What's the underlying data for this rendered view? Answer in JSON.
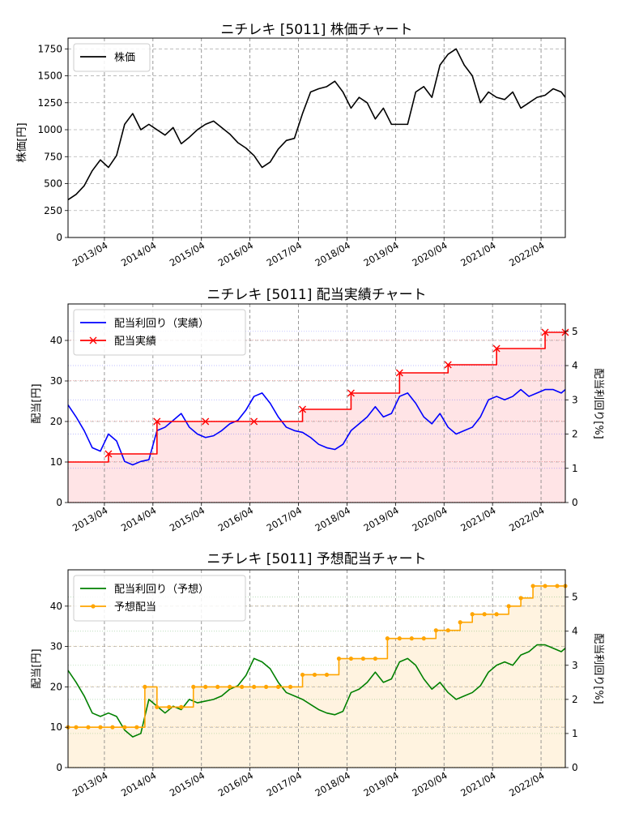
{
  "chart_data": [
    {
      "type": "line",
      "title": "ニチレキ [5011]  株価チャート",
      "ylabel": "株価[円]",
      "ylim": [
        0,
        1850
      ],
      "yticks": [
        0,
        250,
        500,
        750,
        1000,
        1250,
        1500,
        1750
      ],
      "x_range": [
        "2012-07",
        "2022-10"
      ],
      "xticks": [
        "2013/04",
        "2014/04",
        "2015/04",
        "2016/04",
        "2017/04",
        "2018/04",
        "2019/04",
        "2020/04",
        "2021/04",
        "2022/04"
      ],
      "grid": true,
      "legend_position": "top-left",
      "series": [
        {
          "name": "株価",
          "color": "#000000",
          "x": [
            "2012-07",
            "2012-09",
            "2012-11",
            "2013-01",
            "2013-03",
            "2013-05",
            "2013-07",
            "2013-09",
            "2013-11",
            "2014-01",
            "2014-03",
            "2014-05",
            "2014-07",
            "2014-09",
            "2014-11",
            "2015-01",
            "2015-03",
            "2015-05",
            "2015-07",
            "2015-09",
            "2015-11",
            "2016-01",
            "2016-03",
            "2016-05",
            "2016-07",
            "2016-09",
            "2016-11",
            "2017-01",
            "2017-03",
            "2017-05",
            "2017-07",
            "2017-09",
            "2017-11",
            "2018-01",
            "2018-03",
            "2018-05",
            "2018-07",
            "2018-09",
            "2018-11",
            "2019-01",
            "2019-03",
            "2019-05",
            "2019-07",
            "2019-09",
            "2019-11",
            "2020-01",
            "2020-03",
            "2020-05",
            "2020-07",
            "2020-09",
            "2020-11",
            "2021-01",
            "2021-03",
            "2021-05",
            "2021-07",
            "2021-09",
            "2021-11",
            "2022-01",
            "2022-03",
            "2022-05",
            "2022-07",
            "2022-09",
            "2022-10"
          ],
          "values": [
            350,
            400,
            480,
            620,
            720,
            650,
            760,
            1050,
            1150,
            1000,
            1050,
            1000,
            950,
            1020,
            870,
            930,
            1000,
            1050,
            1080,
            1020,
            960,
            880,
            830,
            760,
            650,
            700,
            820,
            900,
            920,
            1150,
            1350,
            1380,
            1400,
            1450,
            1350,
            1200,
            1300,
            1250,
            1100,
            1200,
            1050,
            1050,
            1050,
            1350,
            1400,
            1300,
            1600,
            1700,
            1750,
            1600,
            1500,
            1250,
            1350,
            1300,
            1280,
            1350,
            1200,
            1250,
            1300,
            1320,
            1380,
            1350,
            1300
          ]
        }
      ]
    },
    {
      "type": "line",
      "title": "ニチレキ [5011]  配当実績チャート",
      "ylabel": "配当[円]",
      "ylabel_right": "配当利回り[%]",
      "ylim": [
        0,
        49
      ],
      "yticks": [
        0,
        10,
        20,
        30,
        40
      ],
      "ylim_right": [
        0,
        5.8
      ],
      "yticks_right": [
        0,
        1,
        2,
        3,
        4,
        5
      ],
      "x_range": [
        "2012-07",
        "2022-10"
      ],
      "xticks": [
        "2013/04",
        "2014/04",
        "2015/04",
        "2016/04",
        "2017/04",
        "2018/04",
        "2019/04",
        "2020/04",
        "2021/04",
        "2022/04"
      ],
      "grid": true,
      "legend_position": "top-left",
      "series": [
        {
          "name": "配当利回り（実績）",
          "axis": "right",
          "color": "#0000ff",
          "x": [
            "2012-07",
            "2012-09",
            "2012-11",
            "2013-01",
            "2013-03",
            "2013-05",
            "2013-07",
            "2013-09",
            "2013-11",
            "2014-01",
            "2014-03",
            "2014-05",
            "2014-07",
            "2014-09",
            "2014-11",
            "2015-01",
            "2015-03",
            "2015-05",
            "2015-07",
            "2015-09",
            "2015-11",
            "2016-01",
            "2016-03",
            "2016-05",
            "2016-07",
            "2016-09",
            "2016-11",
            "2017-01",
            "2017-03",
            "2017-05",
            "2017-07",
            "2017-09",
            "2017-11",
            "2018-01",
            "2018-03",
            "2018-05",
            "2018-07",
            "2018-09",
            "2018-11",
            "2019-01",
            "2019-03",
            "2019-05",
            "2019-07",
            "2019-09",
            "2019-11",
            "2020-01",
            "2020-03",
            "2020-05",
            "2020-07",
            "2020-09",
            "2020-11",
            "2021-01",
            "2021-03",
            "2021-05",
            "2021-07",
            "2021-09",
            "2021-11",
            "2022-01",
            "2022-03",
            "2022-05",
            "2022-07",
            "2022-09",
            "2022-10"
          ],
          "values": [
            2.85,
            2.5,
            2.1,
            1.6,
            1.5,
            2.0,
            1.8,
            1.2,
            1.1,
            1.2,
            1.25,
            2.1,
            2.2,
            2.4,
            2.6,
            2.2,
            2.0,
            1.9,
            1.95,
            2.1,
            2.3,
            2.4,
            2.7,
            3.1,
            3.2,
            2.9,
            2.5,
            2.2,
            2.1,
            2.05,
            1.9,
            1.7,
            1.6,
            1.55,
            1.7,
            2.1,
            2.3,
            2.5,
            2.8,
            2.5,
            2.6,
            3.1,
            3.2,
            2.9,
            2.5,
            2.3,
            2.6,
            2.2,
            2.0,
            2.1,
            2.2,
            2.5,
            3.0,
            3.1,
            3.0,
            3.1,
            3.3,
            3.1,
            3.2,
            3.3,
            3.3,
            3.2,
            3.3
          ]
        },
        {
          "name": "配当実績",
          "axis": "left",
          "step": true,
          "marker": "x",
          "color": "#ff0000",
          "x": [
            "2012-07",
            "2013-05",
            "2014-05",
            "2015-05",
            "2016-05",
            "2017-05",
            "2018-05",
            "2019-05",
            "2020-05",
            "2021-05",
            "2022-05",
            "2022-10"
          ],
          "values": [
            10,
            12,
            20,
            20,
            20,
            23,
            27,
            32,
            34,
            38,
            42,
            42
          ]
        }
      ]
    },
    {
      "type": "line",
      "title": "ニチレキ [5011]  予想配当チャート",
      "ylabel": "配当[円]",
      "ylabel_right": "配当利回り[%]",
      "ylim": [
        0,
        49
      ],
      "yticks": [
        0,
        10,
        20,
        30,
        40
      ],
      "ylim_right": [
        0,
        5.8
      ],
      "yticks_right": [
        0,
        1,
        2,
        3,
        4,
        5
      ],
      "x_range": [
        "2012-07",
        "2022-10"
      ],
      "xticks": [
        "2013/04",
        "2014/04",
        "2015/04",
        "2016/04",
        "2017/04",
        "2018/04",
        "2019/04",
        "2020/04",
        "2021/04",
        "2022/04"
      ],
      "grid": true,
      "legend_position": "top-left",
      "series": [
        {
          "name": "配当利回り（予想）",
          "axis": "right",
          "color": "#008000",
          "x": [
            "2012-07",
            "2012-09",
            "2012-11",
            "2013-01",
            "2013-03",
            "2013-05",
            "2013-07",
            "2013-09",
            "2013-11",
            "2014-01",
            "2014-03",
            "2014-05",
            "2014-07",
            "2014-09",
            "2014-11",
            "2015-01",
            "2015-03",
            "2015-05",
            "2015-07",
            "2015-09",
            "2015-11",
            "2016-01",
            "2016-03",
            "2016-05",
            "2016-07",
            "2016-09",
            "2016-11",
            "2017-01",
            "2017-03",
            "2017-05",
            "2017-07",
            "2017-09",
            "2017-11",
            "2018-01",
            "2018-03",
            "2018-05",
            "2018-07",
            "2018-09",
            "2018-11",
            "2019-01",
            "2019-03",
            "2019-05",
            "2019-07",
            "2019-09",
            "2019-11",
            "2020-01",
            "2020-03",
            "2020-05",
            "2020-07",
            "2020-09",
            "2020-11",
            "2021-01",
            "2021-03",
            "2021-05",
            "2021-07",
            "2021-09",
            "2021-11",
            "2022-01",
            "2022-03",
            "2022-05",
            "2022-07",
            "2022-09",
            "2022-10"
          ],
          "values": [
            2.85,
            2.5,
            2.1,
            1.6,
            1.5,
            1.6,
            1.5,
            1.1,
            0.9,
            1.0,
            2.0,
            1.8,
            1.6,
            1.8,
            1.7,
            2.0,
            1.9,
            1.95,
            2.0,
            2.1,
            2.3,
            2.4,
            2.7,
            3.2,
            3.1,
            2.9,
            2.5,
            2.2,
            2.1,
            2.0,
            1.85,
            1.7,
            1.6,
            1.55,
            1.65,
            2.2,
            2.3,
            2.5,
            2.8,
            2.5,
            2.6,
            3.1,
            3.2,
            3.0,
            2.6,
            2.3,
            2.5,
            2.2,
            2.0,
            2.1,
            2.2,
            2.4,
            2.8,
            3.0,
            3.1,
            3.0,
            3.3,
            3.4,
            3.6,
            3.6,
            3.5,
            3.4,
            3.5
          ]
        },
        {
          "name": "予想配当",
          "axis": "left",
          "step": true,
          "marker": "o",
          "color": "#ffa500",
          "x": [
            "2012-07",
            "2012-09",
            "2012-12",
            "2013-03",
            "2013-06",
            "2013-09",
            "2013-12",
            "2014-02",
            "2014-05",
            "2014-08",
            "2014-11",
            "2015-02",
            "2015-05",
            "2015-08",
            "2015-11",
            "2016-02",
            "2016-05",
            "2016-08",
            "2016-11",
            "2017-02",
            "2017-05",
            "2017-08",
            "2017-11",
            "2018-02",
            "2018-05",
            "2018-08",
            "2018-11",
            "2019-02",
            "2019-05",
            "2019-08",
            "2019-11",
            "2020-02",
            "2020-05",
            "2020-08",
            "2020-11",
            "2021-02",
            "2021-05",
            "2021-08",
            "2021-11",
            "2022-02",
            "2022-05",
            "2022-08",
            "2022-10"
          ],
          "values": [
            10,
            10,
            10,
            10,
            10,
            10,
            10,
            20,
            15,
            15,
            15,
            20,
            20,
            20,
            20,
            20,
            20,
            20,
            20,
            20,
            23,
            23,
            23,
            27,
            27,
            27,
            27,
            32,
            32,
            32,
            32,
            34,
            34,
            36,
            38,
            38,
            38,
            40,
            42,
            45,
            45,
            45,
            45
          ]
        }
      ]
    }
  ]
}
